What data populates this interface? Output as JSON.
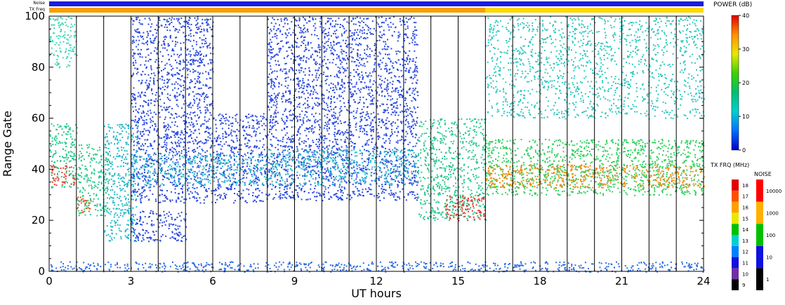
{
  "chart_data": {
    "type": "heatmap",
    "title": "",
    "xlabel": "UT hours",
    "ylabel": "Range Gate",
    "xlim": [
      0,
      24
    ],
    "ylim": [
      0,
      100
    ],
    "x_ticks": [
      "0",
      "3",
      "6",
      "9",
      "12",
      "15",
      "18",
      "21",
      "24"
    ],
    "y_ticks": [
      "0",
      "20",
      "40",
      "60",
      "80",
      "100"
    ],
    "hour_lines": [
      1,
      2,
      3,
      4,
      5,
      6,
      7,
      8,
      9,
      10,
      11,
      12,
      13,
      14,
      15,
      16,
      17,
      18,
      19,
      20,
      21,
      22,
      23
    ],
    "top_strips": [
      {
        "label": "Noise",
        "segments": [
          {
            "x0": 0,
            "x1": 24,
            "color": "#1c1ce0"
          }
        ]
      },
      {
        "label": "TX Freq",
        "segments": [
          {
            "x0": 0,
            "x1": 16,
            "color": "#f5a000"
          },
          {
            "x0": 16,
            "x1": 24,
            "color": "#ffd800"
          }
        ]
      }
    ],
    "series": [
      {
        "x0": 0.0,
        "x1": 1.0,
        "y0": 33,
        "y1": 58,
        "color": "#22c98a"
      },
      {
        "x0": 0.0,
        "x1": 0.9,
        "y0": 34,
        "y1": 42,
        "color": "#e83a2a"
      },
      {
        "x0": 0.0,
        "x1": 1.0,
        "y0": 80,
        "y1": 100,
        "color": "#40d8b8"
      },
      {
        "x0": 1.0,
        "x1": 2.2,
        "y0": 22,
        "y1": 50,
        "color": "#28c88a"
      },
      {
        "x0": 1.0,
        "x1": 1.6,
        "y0": 23,
        "y1": 30,
        "color": "#e85a20"
      },
      {
        "x0": 2.0,
        "x1": 3.2,
        "y0": 12,
        "y1": 58,
        "color": "#22b8c8"
      },
      {
        "x0": 3.0,
        "x1": 8.0,
        "y0": 27,
        "y1": 62,
        "color": "#2a4ae0"
      },
      {
        "x0": 3.0,
        "x1": 8.0,
        "y0": 34,
        "y1": 46,
        "color": "#2cb8d0"
      },
      {
        "x0": 3.0,
        "x1": 6.0,
        "y0": 62,
        "y1": 100,
        "color": "#2a4ae0"
      },
      {
        "x0": 3.0,
        "x1": 5.0,
        "y0": 12,
        "y1": 24,
        "color": "#2a4ae0"
      },
      {
        "x0": 8.0,
        "x1": 13.5,
        "y0": 28,
        "y1": 64,
        "color": "#2a4ae0"
      },
      {
        "x0": 8.0,
        "x1": 13.5,
        "y0": 34,
        "y1": 48,
        "color": "#2cb8d0"
      },
      {
        "x0": 8.0,
        "x1": 13.5,
        "y0": 64,
        "y1": 100,
        "color": "#2a4ae0"
      },
      {
        "x0": 13.5,
        "x1": 16.0,
        "y0": 20,
        "y1": 60,
        "color": "#2cc890"
      },
      {
        "x0": 14.5,
        "x1": 16.0,
        "y0": 20,
        "y1": 30,
        "color": "#e83a2a"
      },
      {
        "x0": 16.0,
        "x1": 24.0,
        "y0": 30,
        "y1": 52,
        "color": "#30d060"
      },
      {
        "x0": 16.0,
        "x1": 24.0,
        "y0": 33,
        "y1": 42,
        "color": "#f08a10"
      },
      {
        "x0": 16.0,
        "x1": 24.0,
        "y0": 60,
        "y1": 100,
        "color": "#30c8c0"
      },
      {
        "x0": 0.0,
        "x1": 24.0,
        "y0": 0,
        "y1": 4,
        "color": "#2a6ae0"
      }
    ],
    "colorbars": [
      {
        "label": "POWER (dB)",
        "ticks": [
          "0",
          "10",
          "20",
          "30",
          "40"
        ],
        "stops": [
          "#0000c8",
          "#0070ff",
          "#00d0d0",
          "#00c070",
          "#40d000",
          "#e8e800",
          "#ff9000",
          "#e00000"
        ]
      },
      {
        "label": "TX FRQ (MHz)",
        "ticks": [
          "9",
          "10",
          "11",
          "12",
          "13",
          "14",
          "15",
          "16",
          "17",
          "18"
        ],
        "colors": [
          "#000000",
          "#7030a0",
          "#1010e0",
          "#0080ff",
          "#00d0d0",
          "#00c000",
          "#e8e800",
          "#ffa000",
          "#ff5000",
          "#e00000"
        ]
      },
      {
        "label": "NOISE",
        "ticks": [
          "1",
          "10",
          "100",
          "1000",
          "10000"
        ],
        "colors": [
          "#000000",
          "#1010e0",
          "#00c000",
          "#ffb000",
          "#ff0000"
        ]
      }
    ],
    "grid": false,
    "legend": "right"
  }
}
